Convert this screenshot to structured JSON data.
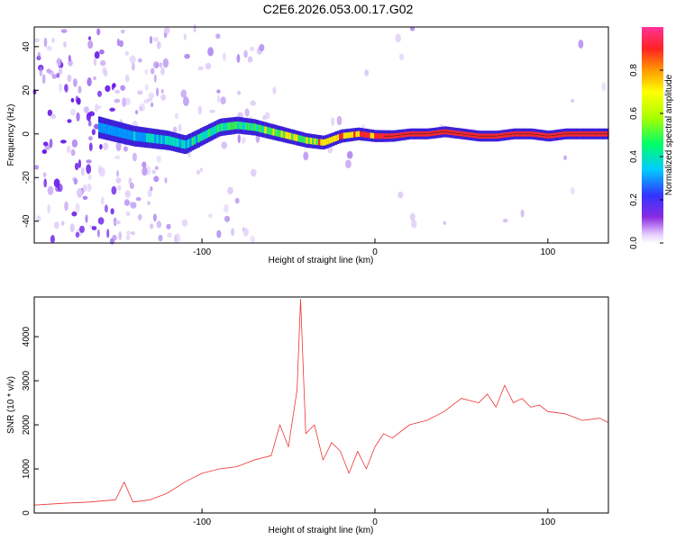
{
  "title": "C2E6.2026.053.00.17.G02",
  "colors": {
    "trace": "#ee3333",
    "frame": "#000000"
  },
  "chart_data": [
    {
      "type": "heatmap",
      "name": "spectrogram",
      "xlabel": "Height of straight line (km)",
      "ylabel": "Frequency (Hz)",
      "xlim": [
        -197,
        135
      ],
      "ylim": [
        -50,
        49
      ],
      "xticks": [
        -100,
        0,
        100
      ],
      "xtick_labels": [
        "-100",
        "0",
        "100"
      ],
      "yticks": [
        -40,
        -20,
        0,
        20,
        40
      ],
      "ytick_labels": [
        "-40",
        "-20",
        "0",
        "20",
        "40"
      ],
      "ridge_km": [
        -160,
        -150,
        -140,
        -130,
        -120,
        -110,
        -100,
        -90,
        -80,
        -70,
        -60,
        -50,
        -40,
        -30,
        -20,
        -10,
        0,
        10,
        20,
        30,
        40,
        50,
        60,
        70,
        80,
        90,
        100,
        110,
        120,
        135
      ],
      "ridge_hz": [
        3,
        1,
        -1,
        -2,
        -3,
        -5,
        -1,
        3,
        4,
        3,
        1,
        -1,
        -3,
        -4,
        -1,
        0,
        -1,
        -1,
        0,
        0,
        1,
        0,
        -1,
        -1,
        0,
        0,
        -1,
        0,
        0,
        0
      ],
      "colorbar": {
        "label": "Normalized spectral amplitude",
        "range": [
          0,
          1
        ],
        "ticks": [
          0.0,
          0.2,
          0.4,
          0.6,
          0.8
        ],
        "tick_labels": [
          "0.0",
          "0.2",
          "0.4",
          "0.6",
          "0.8"
        ]
      }
    },
    {
      "type": "line",
      "name": "snr",
      "xlabel": "Height of straight line (km)",
      "ylabel": "SNR (10 * v/v)",
      "xlim": [
        -197,
        135
      ],
      "ylim": [
        0,
        4900
      ],
      "xticks": [
        -100,
        0,
        100
      ],
      "xtick_labels": [
        "-100",
        "0",
        "100"
      ],
      "yticks": [
        0,
        1000,
        2000,
        3000,
        4000
      ],
      "ytick_labels": [
        "0",
        "1000",
        "2000",
        "3000",
        "4000"
      ],
      "x": [
        -197,
        -180,
        -165,
        -150,
        -145,
        -140,
        -130,
        -120,
        -110,
        -100,
        -90,
        -80,
        -70,
        -60,
        -55,
        -50,
        -45,
        -43,
        -40,
        -35,
        -30,
        -25,
        -20,
        -15,
        -10,
        -5,
        0,
        5,
        10,
        20,
        30,
        40,
        50,
        55,
        60,
        65,
        70,
        75,
        80,
        85,
        90,
        95,
        100,
        110,
        120,
        130,
        135
      ],
      "y": [
        180,
        220,
        250,
        300,
        700,
        250,
        300,
        450,
        700,
        900,
        1000,
        1050,
        1200,
        1300,
        2000,
        1500,
        2800,
        4850,
        1800,
        2000,
        1200,
        1600,
        1400,
        900,
        1400,
        1000,
        1500,
        1800,
        1700,
        2000,
        2100,
        2300,
        2600,
        2550,
        2500,
        2700,
        2400,
        2900,
        2500,
        2600,
        2400,
        2450,
        2300,
        2250,
        2100,
        2150,
        2050
      ]
    }
  ]
}
